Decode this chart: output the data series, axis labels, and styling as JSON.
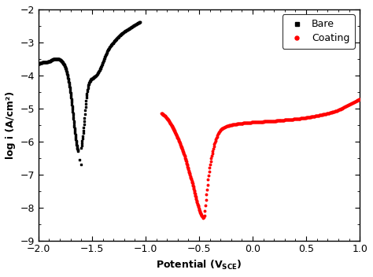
{
  "title": "",
  "xlabel": "Potential (V$_{SCE}$)",
  "ylabel": "log i (A/cm²)",
  "xlim": [
    -2.0,
    1.0
  ],
  "ylim": [
    -9,
    -2
  ],
  "yticks": [
    -9,
    -8,
    -7,
    -6,
    -5,
    -4,
    -3,
    -2
  ],
  "xticks": [
    -2.0,
    -1.5,
    -1.0,
    -0.5,
    0.0,
    0.5,
    1.0
  ],
  "bare_color": "black",
  "coating_color": "red",
  "legend_bare": "Bare",
  "legend_coating": "Coating",
  "background_color": "white"
}
